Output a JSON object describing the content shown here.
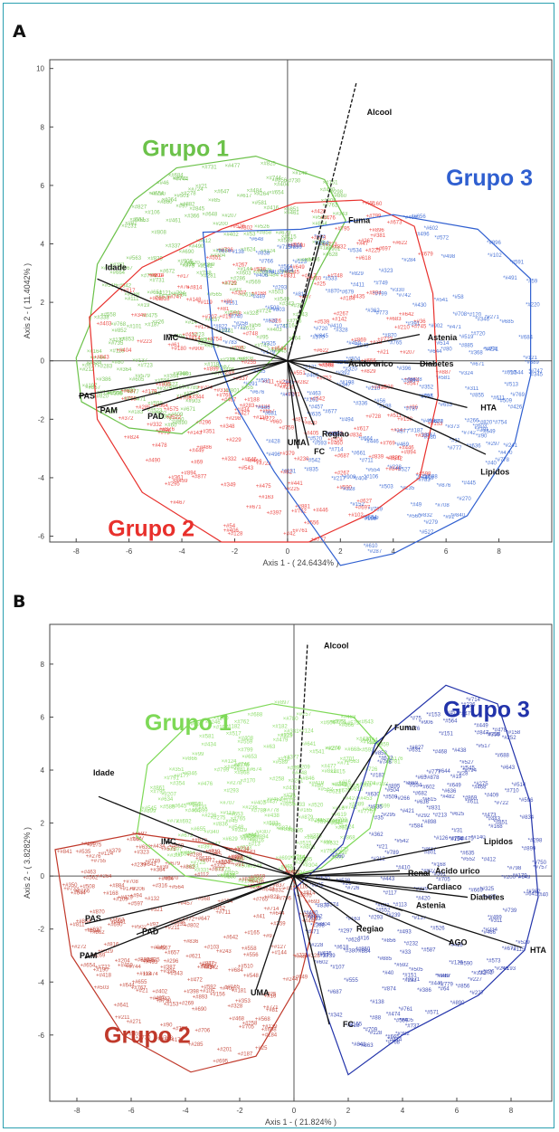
{
  "panels": [
    {
      "letter": "A",
      "chart_data": {
        "type": "scatter",
        "subtype": "biplot",
        "xlabel": "Axis 1 - ( 24.6434% )",
        "ylabel": "Axis 2 - ( 11.4042% )",
        "xlim": [
          -9,
          10
        ],
        "ylim": [
          -6.2,
          10.3
        ],
        "xticks": [
          -8,
          -6,
          -4,
          -2,
          0,
          2,
          4,
          6,
          8
        ],
        "yticks": [
          -6,
          -4,
          -2,
          0,
          2,
          4,
          6,
          8,
          10
        ],
        "grid": false,
        "groups": [
          {
            "name": "Grupo 1",
            "color": "#6cc24a",
            "label_at": [
              -5.5,
              7.0
            ],
            "hull": [
              [
                -7.5,
                1.2
              ],
              [
                -7.2,
                3.3
              ],
              [
                -5.8,
                5.5
              ],
              [
                -4.2,
                6.6
              ],
              [
                -1.2,
                7.0
              ],
              [
                1.4,
                6.2
              ],
              [
                2.2,
                4.8
              ],
              [
                1.0,
                2.8
              ],
              [
                0.2,
                0.8
              ],
              [
                -1.6,
                -0.9
              ],
              [
                -4.0,
                -2.5
              ],
              [
                -6.0,
                -2.3
              ],
              [
                -7.8,
                -1.4
              ],
              [
                -8.0,
                0.1
              ]
            ]
          },
          {
            "name": "Grupo 2",
            "color": "#e8302c",
            "label_at": [
              -6.8,
              -6.0
            ],
            "hull": [
              [
                -7.5,
                1.5
              ],
              [
                -5.5,
                3.2
              ],
              [
                -2.5,
                4.5
              ],
              [
                0.3,
                5.4
              ],
              [
                2.8,
                5.5
              ],
              [
                4.8,
                4.6
              ],
              [
                5.5,
                2.3
              ],
              [
                5.7,
                -1.2
              ],
              [
                5.0,
                -4.0
              ],
              [
                3.2,
                -5.2
              ],
              [
                0.8,
                -6.2
              ],
              [
                -2.5,
                -6.2
              ],
              [
                -5.5,
                -4.5
              ],
              [
                -7.2,
                -2.0
              ]
            ]
          },
          {
            "name": "Grupo 3",
            "color": "#2f5fd0",
            "label_at": [
              6.0,
              6.0
            ],
            "hull": [
              [
                -3.2,
                4.4
              ],
              [
                0.5,
                4.5
              ],
              [
                4.0,
                5.0
              ],
              [
                7.2,
                4.5
              ],
              [
                9.2,
                2.8
              ],
              [
                9.2,
                -0.5
              ],
              [
                8.6,
                -2.8
              ],
              [
                6.8,
                -5.3
              ],
              [
                4.0,
                -6.6
              ],
              [
                2.0,
                -7.0
              ],
              [
                -0.5,
                -3.8
              ],
              [
                -2.0,
                -1.5
              ],
              [
                -2.8,
                0.5
              ]
            ]
          }
        ],
        "vectors": [
          {
            "label": "Alcool",
            "x": 2.6,
            "y": 9.5,
            "label_at": [
              2.9,
              8.5
            ]
          },
          {
            "label": "Fuma",
            "x": 1.3,
            "y": 4.3,
            "label_at": [
              2.2,
              4.8
            ]
          },
          {
            "label": "Idade",
            "x": -7.2,
            "y": 2.8,
            "label_at": [
              -7.0,
              3.2
            ]
          },
          {
            "label": "IMC",
            "x": -4.5,
            "y": 0.9,
            "label_at": [
              -4.8,
              0.8
            ]
          },
          {
            "label": "Astenia",
            "x": 5.0,
            "y": 0.9,
            "label_at": [
              5.2,
              0.8
            ]
          },
          {
            "label": "Ácido úrico",
            "x": 3.5,
            "y": -0.1,
            "label_at": [
              2.2,
              -0.1
            ]
          },
          {
            "label": "Diabetes",
            "x": 5.6,
            "y": -0.1,
            "label_at": [
              4.9,
              -0.1
            ]
          },
          {
            "label": "HTA",
            "x": 6.8,
            "y": -1.6,
            "label_at": [
              7.2,
              -1.6
            ]
          },
          {
            "label": "Lipidos",
            "x": 7.5,
            "y": -3.2,
            "label_at": [
              7.2,
              -3.8
            ]
          },
          {
            "label": "Regiao",
            "x": 1.0,
            "y": -2.2,
            "label_at": [
              1.2,
              -2.5
            ]
          },
          {
            "label": "UMA",
            "x": 0.4,
            "y": -3.0,
            "label_at": [
              -0.1,
              -2.8
            ]
          },
          {
            "label": "FC",
            "x": 0.8,
            "y": -2.9,
            "label_at": [
              0.9,
              -3.1
            ]
          },
          {
            "label": "PAS",
            "x": -7.9,
            "y": -1.2,
            "label_at": [
              -8.0,
              -1.2
            ]
          },
          {
            "label": "PAM",
            "x": -7.2,
            "y": -1.6,
            "label_at": [
              -7.2,
              -1.7
            ]
          },
          {
            "label": "PAD",
            "x": -5.5,
            "y": -1.7,
            "label_at": [
              -5.4,
              -1.9
            ]
          }
        ],
        "axis_color": "#111111"
      }
    },
    {
      "letter": "B",
      "chart_data": {
        "type": "scatter",
        "subtype": "biplot",
        "xlabel": "Axis 1 - ( 21.824% )",
        "ylabel": "Axis 2 - ( 3.8282% )",
        "xlim": [
          -9,
          9.5
        ],
        "ylim": [
          -8.5,
          9.5
        ],
        "xticks": [
          -8,
          -6,
          -4,
          -2,
          0,
          2,
          4,
          6,
          8
        ],
        "yticks": [
          -6,
          -4,
          -2,
          0,
          2,
          4,
          6,
          8
        ],
        "grid": false,
        "groups": [
          {
            "name": "Grupo 1",
            "color": "#7ed957",
            "label_at": [
              -5.5,
              5.5
            ],
            "hull": [
              [
                -5.8,
                1.5
              ],
              [
                -5.4,
                4.2
              ],
              [
                -3.8,
                5.8
              ],
              [
                -0.8,
                6.5
              ],
              [
                2.2,
                6.0
              ],
              [
                3.5,
                4.5
              ],
              [
                2.8,
                1.8
              ],
              [
                1.0,
                0.3
              ],
              [
                -1.5,
                -0.4
              ],
              [
                -4.0,
                0.0
              ]
            ]
          },
          {
            "name": "Grupo 2",
            "color": "#c0392b",
            "label_at": [
              -7.0,
              -6.3
            ],
            "hull": [
              [
                -8.8,
                1.0
              ],
              [
                -5.8,
                1.6
              ],
              [
                -3.0,
                1.2
              ],
              [
                -0.5,
                0.6
              ],
              [
                0.8,
                -1.5
              ],
              [
                0.2,
                -4.0
              ],
              [
                -1.4,
                -6.8
              ],
              [
                -3.8,
                -7.4
              ],
              [
                -6.3,
                -6.0
              ],
              [
                -8.2,
                -3.0
              ]
            ]
          },
          {
            "name": "Grupo 3",
            "color": "#2233aa",
            "label_at": [
              5.5,
              6.0
            ],
            "hull": [
              [
                1.8,
                1.2
              ],
              [
                3.0,
                5.0
              ],
              [
                5.6,
                7.2
              ],
              [
                7.5,
                6.5
              ],
              [
                8.7,
                2.8
              ],
              [
                9.0,
                -0.8
              ],
              [
                8.5,
                -2.8
              ],
              [
                6.8,
                -4.5
              ],
              [
                4.0,
                -6.0
              ],
              [
                2.0,
                -7.5
              ],
              [
                0.6,
                -3.5
              ],
              [
                0.0,
                -0.5
              ]
            ]
          }
        ],
        "vectors": [
          {
            "label": "Alcool",
            "x": 0.5,
            "y": 8.8,
            "label_at": [
              1.0,
              8.7
            ]
          },
          {
            "label": "Fuma",
            "x": 3.6,
            "y": 5.7,
            "label_at": [
              3.6,
              5.6
            ]
          },
          {
            "label": "Idade",
            "x": -7.2,
            "y": 3.0,
            "label_at": [
              -7.5,
              3.9
            ]
          },
          {
            "label": "IMC",
            "x": -4.7,
            "y": 1.3,
            "label_at": [
              -5.0,
              1.3
            ]
          },
          {
            "label": "Lipidos",
            "x": 6.5,
            "y": 1.3,
            "label_at": [
              6.9,
              1.3
            ]
          },
          {
            "label": "Renal",
            "x": 3.9,
            "y": 0.2,
            "label_at": [
              4.1,
              0.1
            ]
          },
          {
            "label": "Ácido urico",
            "x": 5.0,
            "y": 0.1,
            "label_at": [
              5.1,
              0.2
            ]
          },
          {
            "label": "Cardiaco",
            "x": 4.8,
            "y": -0.5,
            "label_at": [
              4.8,
              -0.4
            ]
          },
          {
            "label": "Diabetes",
            "x": 6.4,
            "y": -0.8,
            "label_at": [
              6.4,
              -0.8
            ]
          },
          {
            "label": "Astenia",
            "x": 4.0,
            "y": -1.3,
            "label_at": [
              4.4,
              -1.1
            ]
          },
          {
            "label": "HTA",
            "x": 8.4,
            "y": -2.7,
            "label_at": [
              8.6,
              -2.8
            ]
          },
          {
            "label": "AGO",
            "x": 5.8,
            "y": -2.5,
            "label_at": [
              5.6,
              -2.5
            ]
          },
          {
            "label": "Regiao",
            "x": 2.5,
            "y": -1.9,
            "label_at": [
              2.2,
              -2.0
            ]
          },
          {
            "label": "UMA",
            "x": -1.4,
            "y": -4.3,
            "label_at": [
              -1.7,
              -4.4
            ]
          },
          {
            "label": "FC",
            "x": 1.3,
            "y": -5.6,
            "label_at": [
              1.7,
              -5.6
            ]
          },
          {
            "label": "PAS",
            "x": -7.7,
            "y": -1.8,
            "label_at": [
              -7.8,
              -1.6
            ]
          },
          {
            "label": "PAD",
            "x": -5.8,
            "y": -2.2,
            "label_at": [
              -5.7,
              -2.1
            ]
          },
          {
            "label": "PAM",
            "x": -7.7,
            "y": -3.1,
            "label_at": [
              -8.0,
              -3.0
            ]
          }
        ],
        "axis_color": "#111111"
      }
    }
  ]
}
